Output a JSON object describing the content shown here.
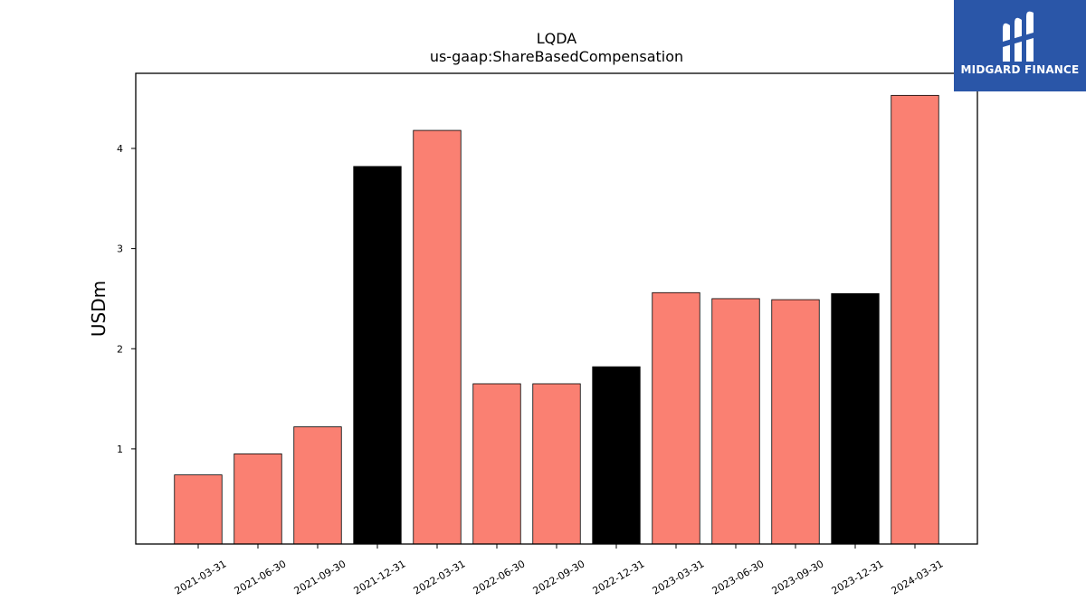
{
  "chart_data": {
    "type": "bar",
    "title": "LQDA",
    "subtitle": "us-gaap:ShareBasedCompensation",
    "xlabel": "",
    "ylabel": "USDm",
    "categories": [
      "2021-03-31",
      "2021-06-30",
      "2021-09-30",
      "2021-12-31",
      "2022-03-31",
      "2022-06-30",
      "2022-09-30",
      "2022-12-31",
      "2023-03-31",
      "2023-06-30",
      "2023-09-30",
      "2023-12-31",
      "2024-03-31"
    ],
    "values": [
      0.74,
      0.95,
      1.22,
      3.82,
      4.18,
      1.65,
      1.65,
      1.82,
      2.56,
      2.5,
      2.49,
      2.55,
      4.53
    ],
    "bar_colors": [
      "#fa8072",
      "#fa8072",
      "#fa8072",
      "#000000",
      "#fa8072",
      "#fa8072",
      "#fa8072",
      "#000000",
      "#fa8072",
      "#fa8072",
      "#fa8072",
      "#000000",
      "#fa8072"
    ],
    "yticks": [
      1,
      2,
      3,
      4
    ],
    "ylim": [
      0.05,
      4.75
    ],
    "grid": false,
    "legend": "none"
  },
  "logo": {
    "text": "MIDGARD FINANCE",
    "color": "#2a56a8"
  }
}
